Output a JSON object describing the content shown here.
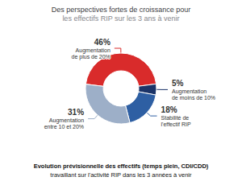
{
  "chart_data": {
    "type": "pie",
    "title": "Des perspectives fortes de croissance pour",
    "subtitle": "les effectifs RIP sur les 3 ans à venir",
    "annotations": [
      "Evolution prévisionnelle des effectifs (temps plein, CDI/CDD)",
      "travaillant sur l'activité RIP dans les 3 années à venir"
    ],
    "categories": [
      "Augmentation\nde plus de 20%",
      "Augmentation\nde moins de 10%",
      "Stabilité de\nl'effectif RIP",
      "Augmentation\nentre 10 et 20%"
    ],
    "values": [
      46,
      5,
      18,
      31
    ],
    "value_labels": [
      "46%",
      "5%",
      "18%",
      "31%"
    ],
    "data_labels": true,
    "colors": [
      "#d92b2b",
      "#1b3468",
      "#2e5fa3",
      "#9dafc8"
    ]
  }
}
